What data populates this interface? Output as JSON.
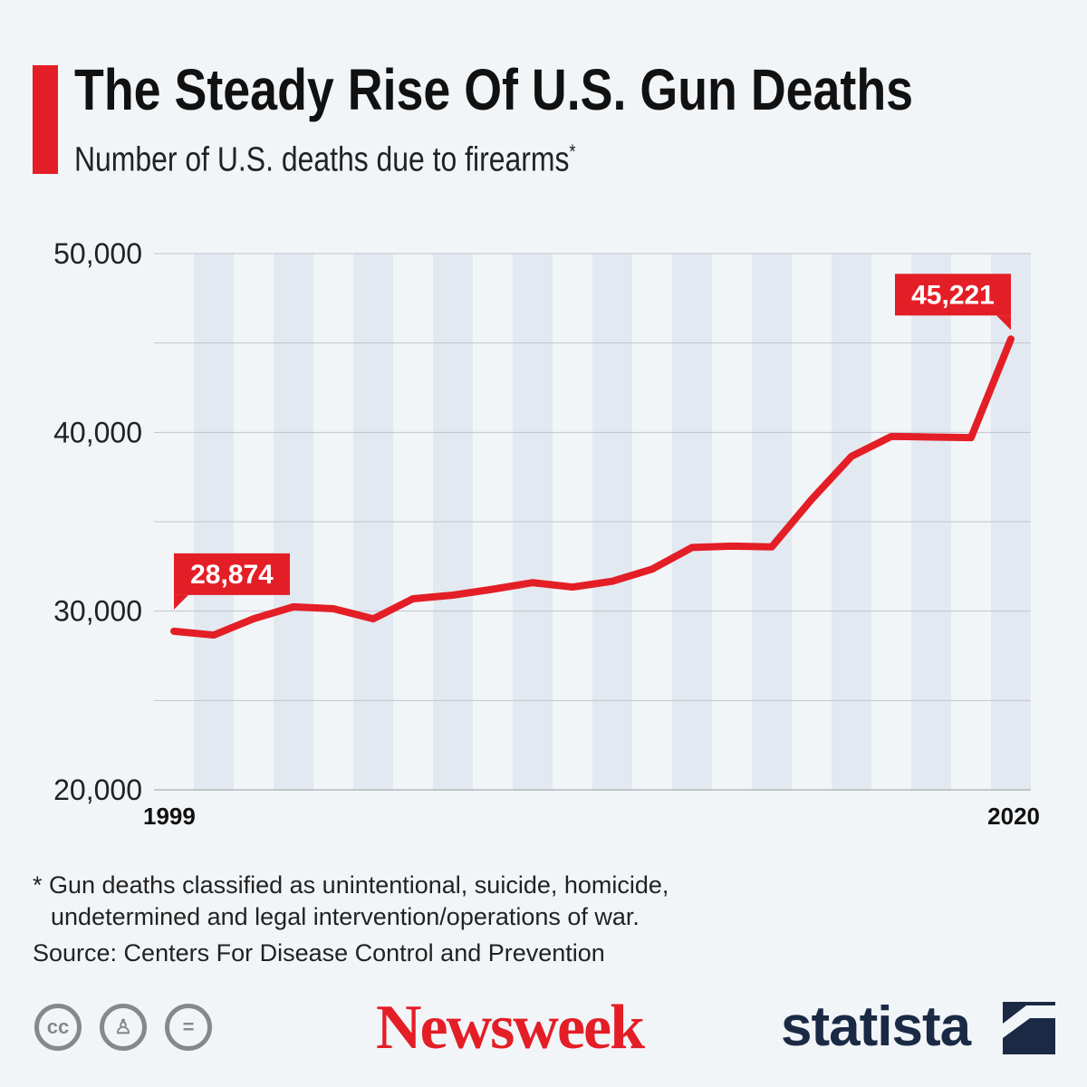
{
  "header": {
    "title": "The Steady Rise Of U.S. Gun Deaths",
    "subtitle": "Number of U.S. deaths due to firearms",
    "subtitle_mark": "*"
  },
  "chart_data": {
    "type": "line",
    "title": "The Steady Rise Of U.S. Gun Deaths",
    "subtitle": "Number of U.S. deaths due to firearms*",
    "x": [
      1999,
      2000,
      2001,
      2002,
      2003,
      2004,
      2005,
      2006,
      2007,
      2008,
      2009,
      2010,
      2011,
      2012,
      2013,
      2014,
      2015,
      2016,
      2017,
      2018,
      2019,
      2020
    ],
    "series": [
      {
        "values": [
          28874,
          28663,
          29573,
          30242,
          30136,
          29569,
          30694,
          30896,
          31224,
          31593,
          31347,
          31672,
          32351,
          33563,
          33636,
          33594,
          36252,
          38658,
          39773,
          39740,
          39707,
          45221
        ]
      }
    ],
    "ylim": [
      20000,
      50000
    ],
    "y_ticks": [
      "50,000",
      "40,000",
      "30,000",
      "20,000"
    ],
    "x_tick_labels": [
      "1999",
      "2020"
    ],
    "data_labels": [
      {
        "x": 1999,
        "label": "28,874"
      },
      {
        "x": 2020,
        "label": "45,221"
      }
    ],
    "grid": true,
    "line_color": "#e41e26",
    "stripe_color": "#e3e9f0"
  },
  "footer": {
    "note_line1": "* Gun deaths classified as unintentional, suicide, homicide,",
    "note_line2": "undetermined and legal intervention/operations of war.",
    "source": "Source: Centers For Disease Control and Prevention",
    "newsweek": "Newsweek",
    "statista": "statista",
    "icons": [
      "creative-commons-icon",
      "attribution-icon",
      "no-derivatives-icon"
    ]
  }
}
